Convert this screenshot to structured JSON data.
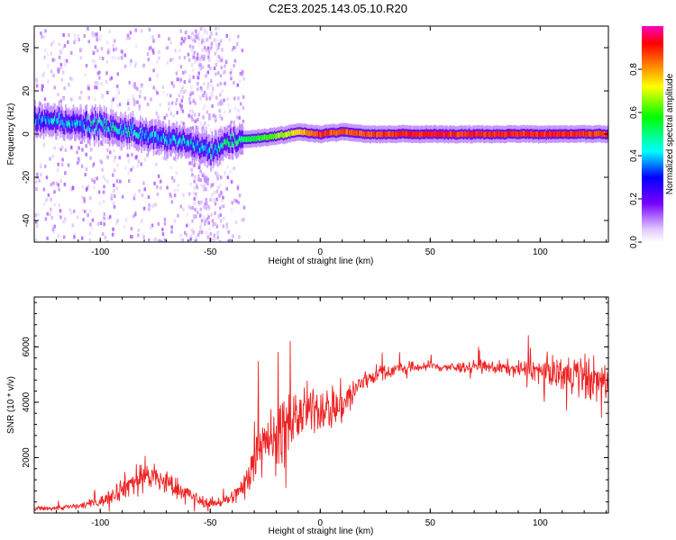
{
  "title": "C2E3.2025.143.05.10.R20",
  "chart_data": [
    {
      "type": "heatmap",
      "xlabel": "Height of straight line (km)",
      "ylabel": "Frequency (Hz)",
      "xlim": [
        -130,
        131
      ],
      "ylim": [
        -50,
        50
      ],
      "xticks": [
        -100,
        -50,
        0,
        50,
        100
      ],
      "yticks": [
        -40,
        -20,
        0,
        20,
        40
      ],
      "colorbar": {
        "label": "Normalized spectral amplitude",
        "ticks": [
          0.0,
          0.2,
          0.4,
          0.6,
          0.8
        ],
        "range": [
          0,
          1
        ],
        "colormap": [
          "#ffffff",
          "#e0c8ff",
          "#7800ff",
          "#0000ff",
          "#00ffff",
          "#00ff00",
          "#ffff00",
          "#ff8000",
          "#ff0000",
          "#ff00c0"
        ]
      },
      "ridge": {
        "description": "dominant spectral ridge (frequency in Hz vs height in km)",
        "x": [
          -130,
          -120,
          -110,
          -100,
          -90,
          -80,
          -70,
          -60,
          -50,
          -45,
          -40,
          -30,
          -20,
          -10,
          0,
          10,
          20,
          40,
          60,
          80,
          100,
          120,
          131
        ],
        "freq": [
          6,
          6,
          5,
          4,
          2,
          0,
          -2,
          -4,
          -8,
          -5,
          -3,
          -2,
          -1,
          1,
          0,
          1,
          0,
          0,
          0,
          0,
          0,
          0,
          0
        ],
        "amplitude": [
          0.35,
          0.4,
          0.4,
          0.45,
          0.45,
          0.4,
          0.4,
          0.4,
          0.4,
          0.45,
          0.5,
          0.55,
          0.65,
          0.75,
          0.9,
          0.85,
          0.85,
          0.9,
          0.9,
          0.9,
          0.9,
          0.88,
          0.85
        ]
      },
      "grid": false
    },
    {
      "type": "line",
      "xlabel": "Height of straight line (km)",
      "ylabel": "SNR (10 * v/v)",
      "xlim": [
        -130,
        131
      ],
      "ylim": [
        0,
        7800
      ],
      "xticks": [
        -100,
        -50,
        0,
        50,
        100
      ],
      "yticks": [
        2000,
        4000,
        6000
      ],
      "color": "#ee2222",
      "series": [
        {
          "x": [
            -130,
            -120,
            -110,
            -100,
            -95,
            -90,
            -85,
            -80,
            -75,
            -70,
            -65,
            -60,
            -55,
            -50,
            -45,
            -40,
            -35,
            -32,
            -30,
            -28,
            -26,
            -24,
            -22,
            -20,
            -18,
            -16,
            -14,
            -12,
            -10,
            -8,
            -6,
            -4,
            -2,
            0,
            2,
            4,
            6,
            8,
            10,
            12,
            14,
            16,
            18,
            20,
            25,
            30,
            35,
            40,
            50,
            60,
            70,
            80,
            90,
            100,
            105,
            110,
            115,
            120,
            125,
            131
          ],
          "values": [
            150,
            180,
            250,
            400,
            650,
            900,
            1150,
            1400,
            1250,
            1100,
            900,
            700,
            450,
            350,
            400,
            550,
            900,
            1600,
            2100,
            2500,
            2900,
            2800,
            2600,
            2600,
            2850,
            3000,
            3200,
            3400,
            3500,
            3550,
            3650,
            3700,
            3800,
            3750,
            3850,
            3700,
            3900,
            3750,
            3950,
            4100,
            4250,
            4400,
            4650,
            4800,
            5000,
            5100,
            5200,
            5250,
            5300,
            5250,
            5300,
            5250,
            5200,
            5150,
            5100,
            5050,
            5000,
            4900,
            4800,
            4700
          ],
          "noise": [
            80,
            90,
            120,
            200,
            300,
            450,
            550,
            700,
            600,
            500,
            400,
            300,
            220,
            180,
            200,
            280,
            500,
            900,
            1200,
            1300,
            1400,
            1300,
            1100,
            1100,
            1300,
            1300,
            1200,
            1100,
            1000,
            950,
            950,
            950,
            900,
            850,
            850,
            850,
            850,
            800,
            850,
            750,
            700,
            600,
            500,
            450,
            350,
            300,
            250,
            220,
            200,
            200,
            220,
            250,
            300,
            450,
            550,
            650,
            800,
            900,
            800,
            700
          ]
        }
      ],
      "grid": false
    }
  ]
}
